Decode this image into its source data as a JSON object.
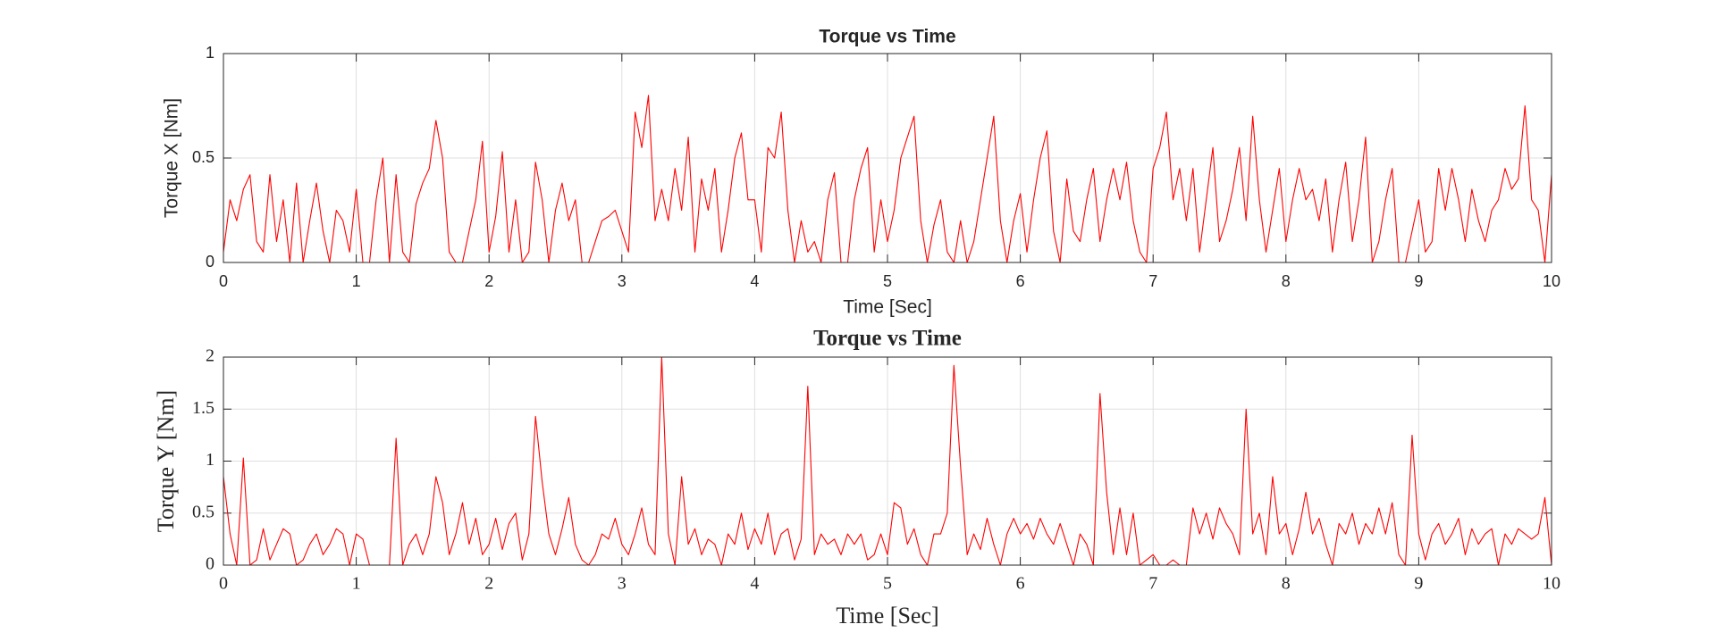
{
  "chart_data": [
    {
      "type": "line",
      "title": "Torque vs Time",
      "xlabel": "Time [Sec]",
      "ylabel": "Torque X [Nm]",
      "color": "#ff0000",
      "xlim": [
        0,
        10
      ],
      "ylim": [
        0,
        1
      ],
      "xticks": [
        0,
        1,
        2,
        3,
        4,
        5,
        6,
        7,
        8,
        9,
        10
      ],
      "yticks": [
        0,
        0.5,
        1
      ],
      "grid": true,
      "x": [
        0,
        0.05,
        0.1,
        0.15,
        0.2,
        0.25,
        0.3,
        0.35,
        0.4,
        0.45,
        0.5,
        0.55,
        0.6,
        0.65,
        0.7,
        0.75,
        0.8,
        0.85,
        0.9,
        0.95,
        1,
        1.05,
        1.1,
        1.15,
        1.2,
        1.25,
        1.3,
        1.35,
        1.4,
        1.45,
        1.5,
        1.55,
        1.6,
        1.65,
        1.7,
        1.75,
        1.8,
        1.85,
        1.9,
        1.95,
        2,
        2.05,
        2.1,
        2.15,
        2.2,
        2.25,
        2.3,
        2.35,
        2.4,
        2.45,
        2.5,
        2.55,
        2.6,
        2.65,
        2.7,
        2.75,
        2.8,
        2.85,
        2.9,
        2.95,
        3,
        3.05,
        3.1,
        3.15,
        3.2,
        3.25,
        3.3,
        3.35,
        3.4,
        3.45,
        3.5,
        3.55,
        3.6,
        3.65,
        3.7,
        3.75,
        3.8,
        3.85,
        3.9,
        3.95,
        4,
        4.05,
        4.1,
        4.15,
        4.2,
        4.25,
        4.3,
        4.35,
        4.4,
        4.45,
        4.5,
        4.55,
        4.6,
        4.65,
        4.7,
        4.75,
        4.8,
        4.85,
        4.9,
        4.95,
        5,
        5.05,
        5.1,
        5.15,
        5.2,
        5.25,
        5.3,
        5.35,
        5.4,
        5.45,
        5.5,
        5.55,
        5.6,
        5.65,
        5.7,
        5.75,
        5.8,
        5.85,
        5.9,
        5.95,
        6,
        6.05,
        6.1,
        6.15,
        6.2,
        6.25,
        6.3,
        6.35,
        6.4,
        6.45,
        6.5,
        6.55,
        6.6,
        6.65,
        6.7,
        6.75,
        6.8,
        6.85,
        6.9,
        6.95,
        7,
        7.05,
        7.1,
        7.15,
        7.2,
        7.25,
        7.3,
        7.35,
        7.4,
        7.45,
        7.5,
        7.55,
        7.6,
        7.65,
        7.7,
        7.75,
        7.8,
        7.85,
        7.9,
        7.95,
        8,
        8.05,
        8.1,
        8.15,
        8.2,
        8.25,
        8.3,
        8.35,
        8.4,
        8.45,
        8.5,
        8.55,
        8.6,
        8.65,
        8.7,
        8.75,
        8.8,
        8.85,
        8.9,
        8.95,
        9,
        9.05,
        9.1,
        9.15,
        9.2,
        9.25,
        9.3,
        9.35,
        9.4,
        9.45,
        9.5,
        9.55,
        9.6,
        9.65,
        9.7,
        9.75,
        9.8,
        9.85,
        9.9,
        9.95,
        10
      ],
      "values": [
        0.05,
        0.3,
        0.2,
        0.35,
        0.42,
        0.1,
        0.05,
        0.42,
        0.1,
        0.3,
        0,
        0.38,
        0,
        0.2,
        0.38,
        0.15,
        0,
        0.25,
        0.2,
        0.05,
        0.35,
        0,
        0,
        0.3,
        0.5,
        0,
        0.42,
        0.05,
        0,
        0.28,
        0.38,
        0.45,
        0.68,
        0.5,
        0.05,
        0,
        0,
        0.15,
        0.3,
        0.58,
        0.05,
        0.22,
        0.53,
        0.05,
        0.3,
        0,
        0.05,
        0.48,
        0.3,
        0,
        0.25,
        0.38,
        0.2,
        0.3,
        0,
        0,
        0.1,
        0.2,
        0.22,
        0.25,
        0.15,
        0.05,
        0.72,
        0.55,
        0.8,
        0.2,
        0.35,
        0.2,
        0.45,
        0.25,
        0.6,
        0.05,
        0.4,
        0.25,
        0.45,
        0.05,
        0.25,
        0.5,
        0.62,
        0.3,
        0.3,
        0.05,
        0.55,
        0.5,
        0.72,
        0.25,
        0,
        0.2,
        0.05,
        0.1,
        0,
        0.3,
        0.43,
        0,
        0,
        0.3,
        0.45,
        0.55,
        0.05,
        0.3,
        0.1,
        0.25,
        0.5,
        0.6,
        0.7,
        0.2,
        0,
        0.18,
        0.3,
        0.05,
        0,
        0.2,
        0,
        0.1,
        0.3,
        0.5,
        0.7,
        0.2,
        0,
        0.2,
        0.33,
        0.05,
        0.3,
        0.5,
        0.63,
        0.15,
        0,
        0.4,
        0.15,
        0.1,
        0.3,
        0.45,
        0.1,
        0.3,
        0.45,
        0.3,
        0.48,
        0.2,
        0.05,
        0,
        0.45,
        0.55,
        0.72,
        0.3,
        0.45,
        0.2,
        0.45,
        0.05,
        0.3,
        0.55,
        0.1,
        0.2,
        0.35,
        0.55,
        0.2,
        0.7,
        0.3,
        0.05,
        0.25,
        0.45,
        0.1,
        0.3,
        0.45,
        0.3,
        0.35,
        0.2,
        0.4,
        0.05,
        0.3,
        0.48,
        0.1,
        0.3,
        0.6,
        0,
        0.1,
        0.3,
        0.45,
        0,
        0,
        0.15,
        0.3,
        0.05,
        0.1,
        0.45,
        0.25,
        0.45,
        0.3,
        0.1,
        0.35,
        0.2,
        0.1,
        0.25,
        0.3,
        0.45,
        0.35,
        0.4,
        0.75,
        0.3,
        0.25,
        0,
        0.42
      ]
    },
    {
      "type": "line",
      "title": "Torque vs Time",
      "xlabel": "Time [Sec]",
      "ylabel": "Torque Y [Nm]",
      "color": "#ff0000",
      "xlim": [
        0,
        10
      ],
      "ylim": [
        0,
        2
      ],
      "xticks": [
        0,
        1,
        2,
        3,
        4,
        5,
        6,
        7,
        8,
        9,
        10
      ],
      "yticks": [
        0,
        0.5,
        1,
        1.5,
        2
      ],
      "grid": true,
      "x": [
        0,
        0.05,
        0.1,
        0.15,
        0.2,
        0.25,
        0.3,
        0.35,
        0.4,
        0.45,
        0.5,
        0.55,
        0.6,
        0.65,
        0.7,
        0.75,
        0.8,
        0.85,
        0.9,
        0.95,
        1,
        1.05,
        1.1,
        1.15,
        1.2,
        1.25,
        1.3,
        1.35,
        1.4,
        1.45,
        1.5,
        1.55,
        1.6,
        1.65,
        1.7,
        1.75,
        1.8,
        1.85,
        1.9,
        1.95,
        2,
        2.05,
        2.1,
        2.15,
        2.2,
        2.25,
        2.3,
        2.35,
        2.4,
        2.45,
        2.5,
        2.55,
        2.6,
        2.65,
        2.7,
        2.75,
        2.8,
        2.85,
        2.9,
        2.95,
        3,
        3.05,
        3.1,
        3.15,
        3.2,
        3.25,
        3.3,
        3.35,
        3.4,
        3.45,
        3.5,
        3.55,
        3.6,
        3.65,
        3.7,
        3.75,
        3.8,
        3.85,
        3.9,
        3.95,
        4,
        4.05,
        4.1,
        4.15,
        4.2,
        4.25,
        4.3,
        4.35,
        4.4,
        4.45,
        4.5,
        4.55,
        4.6,
        4.65,
        4.7,
        4.75,
        4.8,
        4.85,
        4.9,
        4.95,
        5,
        5.05,
        5.1,
        5.15,
        5.2,
        5.25,
        5.3,
        5.35,
        5.4,
        5.45,
        5.5,
        5.55,
        5.6,
        5.65,
        5.7,
        5.75,
        5.8,
        5.85,
        5.9,
        5.95,
        6,
        6.05,
        6.1,
        6.15,
        6.2,
        6.25,
        6.3,
        6.35,
        6.4,
        6.45,
        6.5,
        6.55,
        6.6,
        6.65,
        6.7,
        6.75,
        6.8,
        6.85,
        6.9,
        6.95,
        7,
        7.05,
        7.1,
        7.15,
        7.2,
        7.25,
        7.3,
        7.35,
        7.4,
        7.45,
        7.5,
        7.55,
        7.6,
        7.65,
        7.7,
        7.75,
        7.8,
        7.85,
        7.9,
        7.95,
        8,
        8.05,
        8.1,
        8.15,
        8.2,
        8.25,
        8.3,
        8.35,
        8.4,
        8.45,
        8.5,
        8.55,
        8.6,
        8.65,
        8.7,
        8.75,
        8.8,
        8.85,
        8.9,
        8.95,
        9,
        9.05,
        9.1,
        9.15,
        9.2,
        9.25,
        9.3,
        9.35,
        9.4,
        9.45,
        9.5,
        9.55,
        9.6,
        9.65,
        9.7,
        9.75,
        9.8,
        9.85,
        9.9,
        9.95,
        10
      ],
      "values": [
        0.85,
        0.3,
        0,
        1.03,
        0,
        0.05,
        0.35,
        0.05,
        0.2,
        0.35,
        0.3,
        0,
        0.05,
        0.2,
        0.3,
        0.1,
        0.2,
        0.35,
        0.3,
        0,
        0.3,
        0.25,
        0,
        0,
        0,
        0,
        1.22,
        0,
        0.2,
        0.3,
        0.1,
        0.3,
        0.85,
        0.6,
        0.1,
        0.3,
        0.6,
        0.2,
        0.45,
        0.1,
        0.2,
        0.45,
        0.15,
        0.4,
        0.5,
        0.05,
        0.3,
        1.43,
        0.8,
        0.3,
        0.1,
        0.35,
        0.65,
        0.2,
        0.05,
        0,
        0.1,
        0.3,
        0.25,
        0.45,
        0.2,
        0.1,
        0.3,
        0.55,
        0.2,
        0.1,
        2,
        0.3,
        0,
        0.85,
        0.2,
        0.35,
        0.1,
        0.25,
        0.2,
        0,
        0.3,
        0.2,
        0.5,
        0.15,
        0.35,
        0.2,
        0.5,
        0.1,
        0.3,
        0.35,
        0.05,
        0.25,
        1.72,
        0.1,
        0.3,
        0.2,
        0.25,
        0.1,
        0.3,
        0.2,
        0.3,
        0.05,
        0.1,
        0.3,
        0.1,
        0.6,
        0.55,
        0.2,
        0.35,
        0.1,
        0,
        0.3,
        0.3,
        0.5,
        1.92,
        0.95,
        0.1,
        0.3,
        0.15,
        0.45,
        0.2,
        0,
        0.3,
        0.45,
        0.3,
        0.4,
        0.25,
        0.45,
        0.3,
        0.2,
        0.4,
        0.2,
        0,
        0.3,
        0.2,
        0,
        1.65,
        0.7,
        0.1,
        0.55,
        0.1,
        0.5,
        0,
        0.05,
        0.1,
        0,
        0,
        0.05,
        0,
        0,
        0.55,
        0.3,
        0.5,
        0.25,
        0.55,
        0.4,
        0.3,
        0.1,
        1.5,
        0.3,
        0.5,
        0.1,
        0.85,
        0.3,
        0.4,
        0.1,
        0.35,
        0.7,
        0.3,
        0.45,
        0.2,
        0,
        0.4,
        0.3,
        0.5,
        0.2,
        0.4,
        0.3,
        0.55,
        0.3,
        0.6,
        0.1,
        0,
        1.25,
        0.3,
        0.05,
        0.3,
        0.4,
        0.2,
        0.3,
        0.45,
        0.1,
        0.35,
        0.2,
        0.3,
        0.35,
        0,
        0.3,
        0.2,
        0.35,
        0.3,
        0.25,
        0.3,
        0.65,
        0
      ]
    }
  ]
}
